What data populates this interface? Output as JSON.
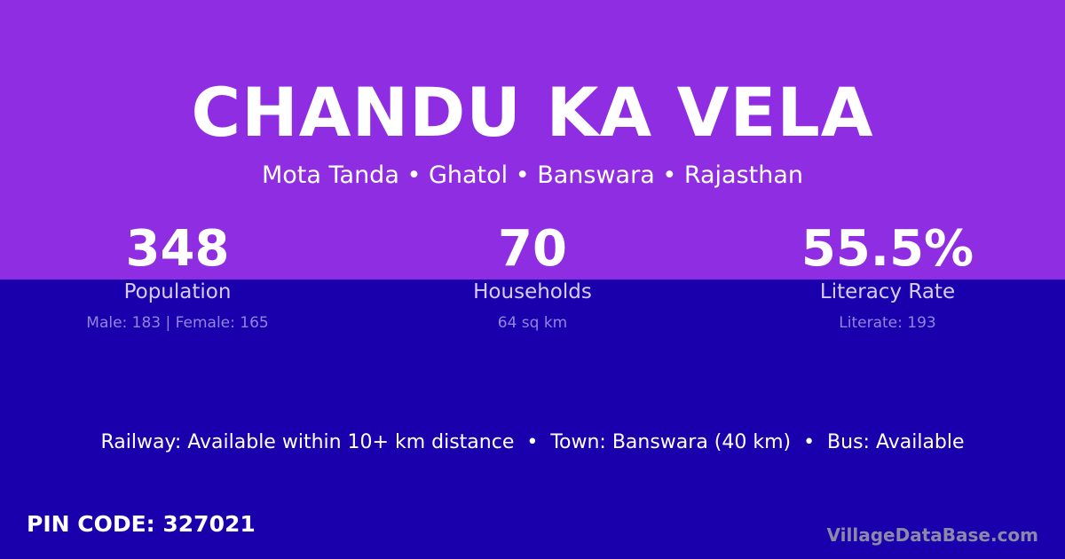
{
  "title": "CHANDU KA VELA",
  "location": "Mota Tanda • Ghatol • Banswara • Rajasthan",
  "stats": [
    {
      "value": "348",
      "label": "Population",
      "sub": "Male: 183 | Female: 165"
    },
    {
      "value": "70",
      "label": "Households",
      "sub": "64 sq km"
    },
    {
      "value": "55.5%",
      "label": "Literacy Rate",
      "sub": "Literate: 193"
    }
  ],
  "connectivity": "Railway: Available within 10+ km distance  •  Town: Banswara (40 km)  •  Bus: Available",
  "pin": "PIN CODE: 327021",
  "brand": "VillageDataBase.com",
  "colors": {
    "top": "#8e2de2",
    "bottom": "#1a00ad"
  }
}
